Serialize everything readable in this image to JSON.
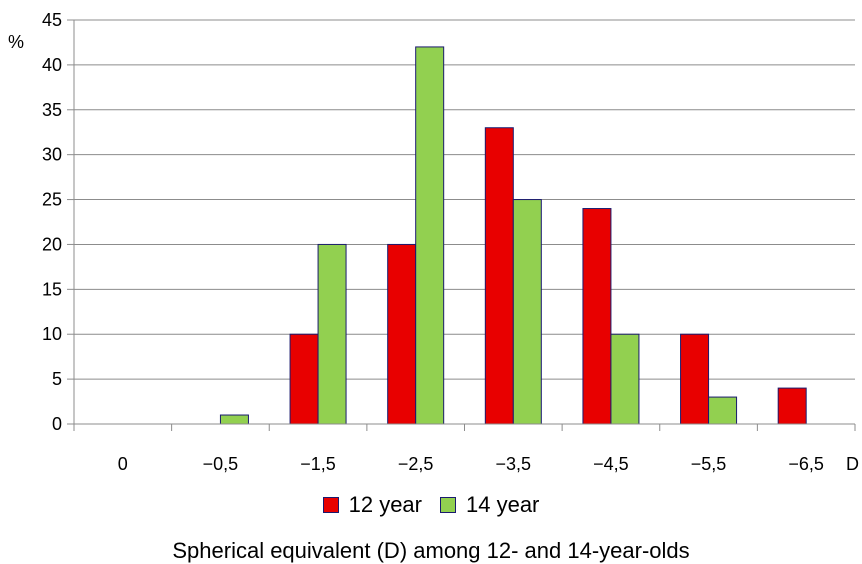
{
  "chart_data": {
    "type": "bar",
    "title": "Spherical equivalent  (D) among  12- and 14-year-olds",
    "ylabel": "%",
    "xlabel": "D",
    "ylim": [
      0,
      45
    ],
    "yticks": [
      0,
      5,
      10,
      15,
      20,
      25,
      30,
      35,
      40,
      45
    ],
    "categories": [
      "0",
      "−0,5",
      "−1,5",
      "−2,5",
      "−3,5",
      "−4,5",
      "−5,5",
      "−6,5"
    ],
    "series": [
      {
        "name": "12 year",
        "color": "#e80000",
        "values": [
          0,
          0,
          10,
          20,
          33,
          24,
          10,
          4
        ]
      },
      {
        "name": "14 year",
        "color": "#92d050",
        "values": [
          0,
          1,
          20,
          42,
          25,
          10,
          3,
          0
        ]
      }
    ],
    "grid": true,
    "legend_position": "bottom"
  }
}
